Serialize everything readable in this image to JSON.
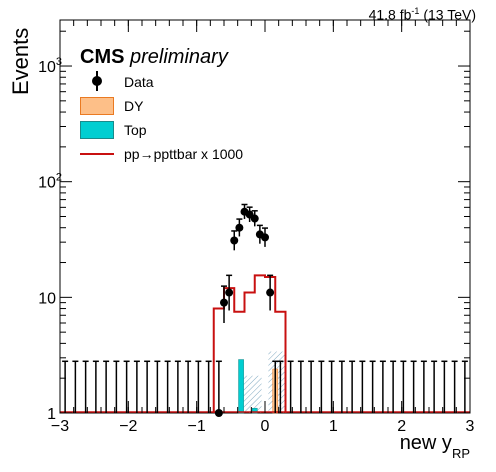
{
  "lumi_label": "41.8 fb",
  "lumi_exponent": "-1",
  "lumi_energy": "(13 TeV)",
  "cms_label": "CMS",
  "cms_sub": "preliminary",
  "colors": {
    "data": "#000000",
    "dy_fill": "#fdbf88",
    "dy_line": "#ea7a22",
    "top_fill": "#00ced1",
    "signal_line": "#c81010",
    "uncertainty_hatch": "#7fa8c0"
  },
  "chart_data": {
    "type": "histogram",
    "xlabel": "new y",
    "xlabel_sub": "RP",
    "ylabel": "Events",
    "y_scale": "log",
    "xlim": [
      -3,
      3
    ],
    "ylim": [
      1,
      2500
    ],
    "x_ticks": [
      "−3",
      "−2",
      "−1",
      "0",
      "1",
      "2",
      "3"
    ],
    "y_ticks": [
      {
        "base": "1",
        "exp": ""
      },
      {
        "base": "10",
        "exp": ""
      },
      {
        "base": "10",
        "exp": "2"
      },
      {
        "base": "10",
        "exp": "3"
      }
    ],
    "legend": [
      "Data",
      "DY",
      "Top",
      "pp→ppttbar x 1000"
    ],
    "legend_position": "top-left",
    "bin_edges": [
      -3,
      -2.85,
      -2.7,
      -2.55,
      -2.4,
      -2.25,
      -2.1,
      -1.95,
      -1.8,
      -1.65,
      -1.5,
      -1.35,
      -1.2,
      -1.05,
      -0.9,
      -0.75,
      -0.6,
      -0.45,
      -0.3,
      -0.15,
      0,
      0.15,
      0.3,
      0.45,
      0.6,
      0.75,
      0.9,
      1.05,
      1.2,
      1.35,
      1.5,
      1.65,
      1.8,
      1.95,
      2.1,
      2.25,
      2.4,
      2.55,
      2.7,
      2.85,
      3
    ],
    "data": {
      "x": [
        -0.675,
        -0.6,
        -0.525,
        -0.45,
        -0.375,
        -0.3,
        -0.225,
        -0.15,
        -0.075,
        0.0,
        0.075,
        0.15,
        0.225
      ],
      "y": [
        0,
        9,
        11,
        31,
        40,
        55,
        52,
        48,
        35,
        33,
        11,
        0,
        0
      ],
      "yerr_up": [
        1.8,
        3.5,
        4.5,
        6.5,
        7.5,
        8.5,
        8.2,
        8.0,
        6.9,
        6.7,
        4.5,
        1.8,
        1.8
      ],
      "yerr_down": [
        0,
        3.0,
        3.3,
        5.5,
        6.4,
        7.4,
        7.2,
        6.9,
        5.9,
        5.7,
        3.3,
        0,
        0
      ],
      "empty_bins_upper_error": 1.8
    },
    "top": {
      "x": [
        -0.35,
        -0.15
      ],
      "y": [
        2.9,
        1.1
      ]
    },
    "dy": {
      "x": [
        0.15
      ],
      "y": [
        2.4
      ]
    },
    "uncertainty_bands": [
      {
        "x_range": [
          -0.35,
          -0.05
        ],
        "y_range": [
          1,
          2.1
        ]
      },
      {
        "x_range": [
          0.05,
          0.3
        ],
        "y_range": [
          1,
          3.4
        ]
      }
    ],
    "signal_x1000": {
      "edges": [
        -0.75,
        -0.6,
        -0.45,
        -0.3,
        -0.15,
        0,
        0.15,
        0.3
      ],
      "values": [
        8,
        12,
        7.5,
        11,
        15.5,
        15,
        7.5
      ]
    }
  }
}
